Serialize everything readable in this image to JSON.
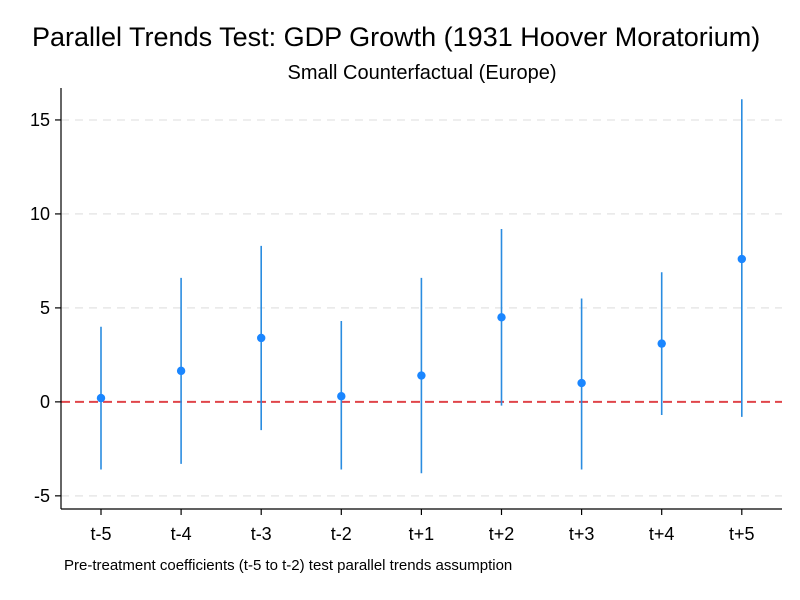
{
  "chart_data": {
    "type": "scatter",
    "title": "Parallel Trends Test: GDP Growth (1931 Hoover Moratorium)",
    "subtitle": "Small Counterfactual (Europe)",
    "note": "Pre-treatment coefficients (t-5 to t-2) test parallel trends assumption",
    "categories": [
      "t-5",
      "t-4",
      "t-3",
      "t-2",
      "t+1",
      "t+2",
      "t+3",
      "t+4",
      "t+5"
    ],
    "estimates": [
      0.2,
      1.65,
      3.4,
      0.3,
      1.4,
      4.5,
      1.0,
      3.1,
      7.6
    ],
    "ci_lower": [
      -3.6,
      -3.3,
      -1.5,
      -3.6,
      -3.8,
      -0.2,
      -3.6,
      -0.7,
      -0.8
    ],
    "ci_upper": [
      4.0,
      6.6,
      8.3,
      4.3,
      6.6,
      9.2,
      5.5,
      6.9,
      16.1
    ],
    "yticks": [
      -5,
      0,
      5,
      10,
      15
    ],
    "ylim": [
      -5.7,
      16.7
    ],
    "reference_line": 0,
    "grid": "horizontal dashed",
    "colors": {
      "point": "#1a86ff",
      "ci_line": "#2a8ce0",
      "reference": "#e0454a",
      "grid": "#e8e8e8"
    }
  }
}
